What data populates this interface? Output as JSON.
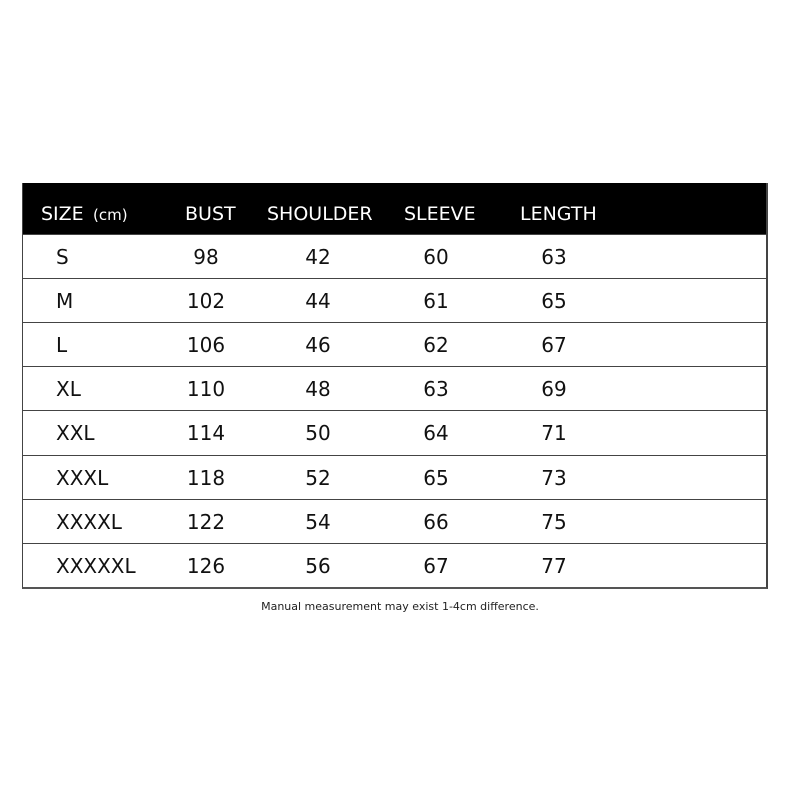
{
  "header": {
    "size": "SIZE",
    "unit": "(cm)",
    "bust": "BUST",
    "shoulder": "SHOULDER",
    "sleeve": "SLEEVE",
    "length": "LENGTH"
  },
  "rows": [
    {
      "size": "S",
      "bust": "98",
      "shoulder": "42",
      "sleeve": "60",
      "length": "63"
    },
    {
      "size": "M",
      "bust": "102",
      "shoulder": "44",
      "sleeve": "61",
      "length": "65"
    },
    {
      "size": "L",
      "bust": "106",
      "shoulder": "46",
      "sleeve": "62",
      "length": "67"
    },
    {
      "size": "XL",
      "bust": "110",
      "shoulder": "48",
      "sleeve": "63",
      "length": "69"
    },
    {
      "size": "XXL",
      "bust": "114",
      "shoulder": "50",
      "sleeve": "64",
      "length": "71"
    },
    {
      "size": "XXXL",
      "bust": "118",
      "shoulder": "52",
      "sleeve": "65",
      "length": "73"
    },
    {
      "size": "XXXXL",
      "bust": "122",
      "shoulder": "54",
      "sleeve": "66",
      "length": "75"
    },
    {
      "size": "XXXXXL",
      "bust": "126",
      "shoulder": "56",
      "sleeve": "67",
      "length": "77"
    }
  ],
  "note": "Manual measurement may exist 1-4cm difference."
}
